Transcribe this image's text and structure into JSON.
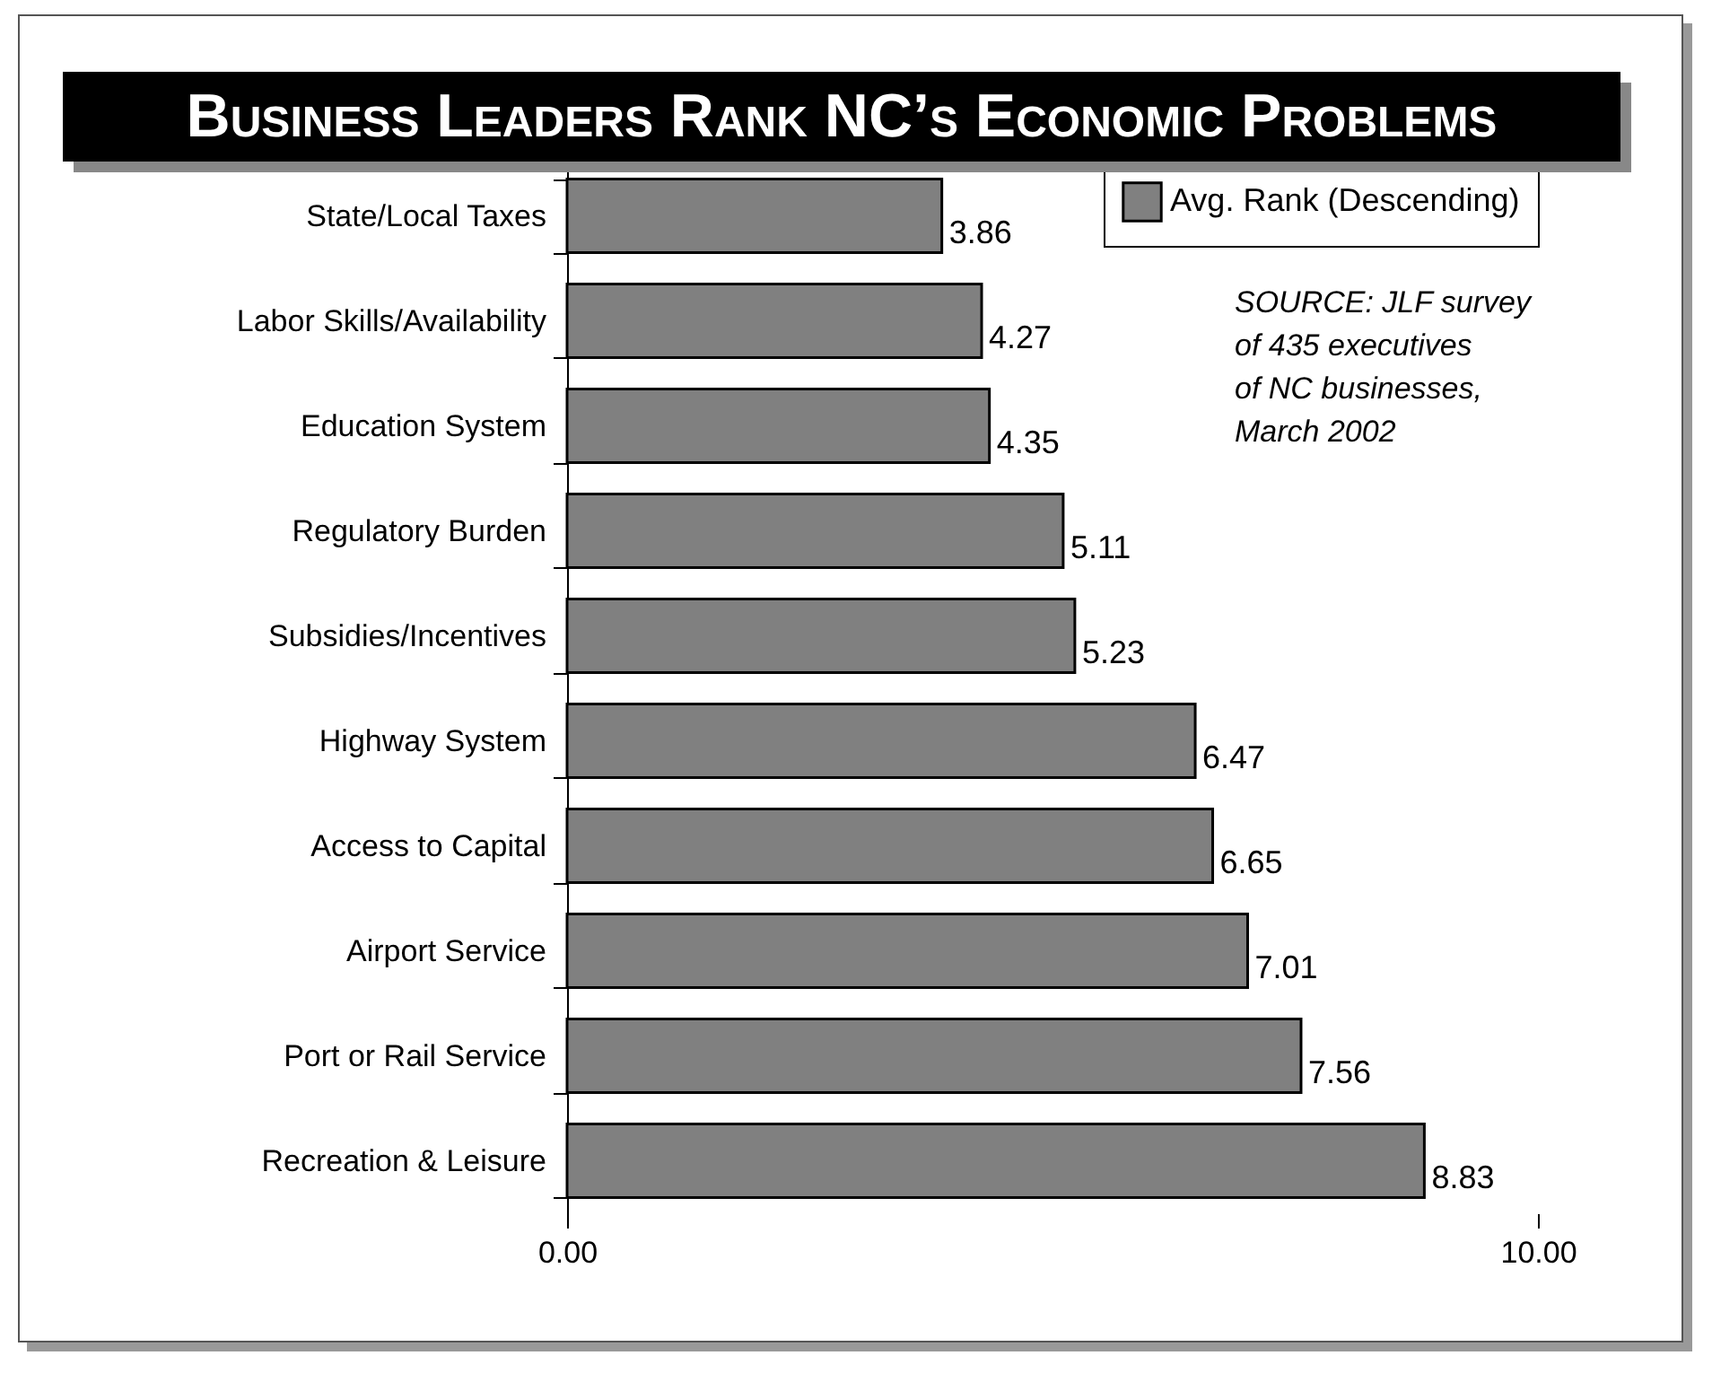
{
  "chart_data": {
    "type": "bar",
    "orientation": "horizontal",
    "title": "Business Leaders Rank NC’s Economic Problems",
    "categories": [
      "State/Local  Taxes",
      "Labor  Skills/Availability",
      "Education System",
      "Regulatory Burden",
      "Subsidies/Incentives",
      "Highway System",
      "Access to Capital",
      "Airport  Service",
      "Port or Rail Service",
      "Recreation & Leisure"
    ],
    "series": [
      {
        "name": "Avg. Rank (Descending)",
        "color": "#808080",
        "values": [
          3.86,
          4.27,
          4.35,
          5.11,
          5.23,
          6.47,
          6.65,
          7.01,
          7.56,
          8.83
        ]
      }
    ],
    "xlim": [
      0,
      10
    ],
    "xticks": [
      {
        "value": 0,
        "label": "0.00"
      },
      {
        "value": 10,
        "label": "10.00"
      }
    ],
    "data_labels": true,
    "legend": "top right",
    "annotations": [
      "SOURCE: JLF survey\nof 435 executives\nof NC businesses,\nMarch 2002"
    ]
  }
}
